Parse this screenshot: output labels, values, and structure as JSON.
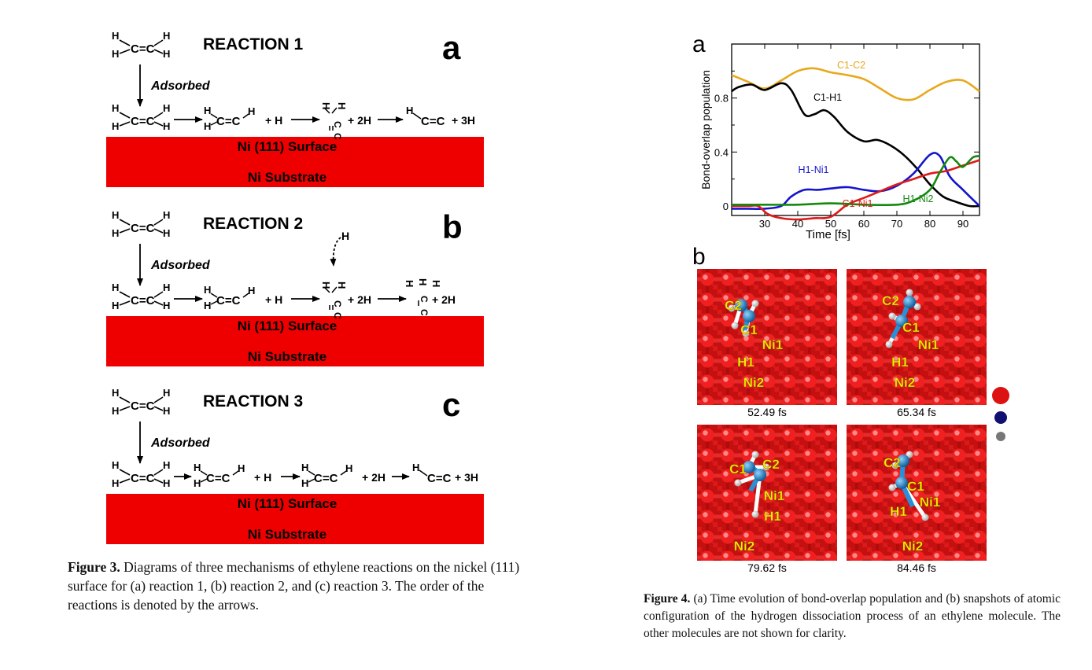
{
  "figure3": {
    "panels": [
      {
        "title": "REACTION 1",
        "letter": "a",
        "adsorbed": "Adsorbed",
        "surface": "Ni (111) Surface",
        "substrate": "Ni Substrate"
      },
      {
        "title": "REACTION 2",
        "letter": "b",
        "adsorbed": "Adsorbed",
        "surface": "Ni (111) Surface",
        "substrate": "Ni Substrate"
      },
      {
        "title": "REACTION 3",
        "letter": "c",
        "adsorbed": "Adsorbed",
        "surface": "Ni (111) Surface",
        "substrate": "Ni Substrate"
      }
    ],
    "plus_h": "+ H",
    "plus_2h": "+ 2H",
    "plus_3h": "+ 3H",
    "h_atom": "H",
    "c_atom": "C",
    "c_eq_c": "C=C",
    "surface_color": "#ee0000",
    "caption_label": "Figure 3.",
    "caption_text": " Diagrams of three mechanisms of ethylene reactions on the nickel (111) surface for (a) reaction 1, (b) reaction 2, and (c) reaction 3. The order of the reactions is denoted by the arrows."
  },
  "figure4": {
    "panel_a_letter": "a",
    "panel_b_letter": "b",
    "snapshot_labels": [
      "C2",
      "C1",
      "Ni1",
      "H1",
      "Ni2"
    ],
    "snapshots": [
      {
        "time": "52.49 fs"
      },
      {
        "time": "65.34 fs"
      },
      {
        "time": "79.62 fs"
      },
      {
        "time": "84.46 fs"
      }
    ],
    "legend_dot_colors": [
      "#dd1111",
      "#101070",
      "#777777"
    ],
    "caption_label": "Figure 4.",
    "caption_text": " (a) Time evolution of bond-overlap population and (b) snapshots of atomic configuration of the hydrogen dissociation process of an ethylene molecule. The other molecules are not shown for clarity."
  },
  "chart_data": {
    "type": "line",
    "xlabel": "Time   [fs]",
    "ylabel": "Bond-overlap population",
    "xlim": [
      20,
      95
    ],
    "ylim": [
      -0.07,
      1.2
    ],
    "xticks": [
      30,
      40,
      50,
      60,
      70,
      80,
      90
    ],
    "yticks": [
      0,
      0.4,
      0.8
    ],
    "ytick_labels": [
      "0",
      "0.4",
      "0.8"
    ],
    "grid": false,
    "series": [
      {
        "name": "C1-C2",
        "color": "#e8a81c",
        "x": [
          20,
          25,
          30,
          35,
          40,
          45,
          50,
          55,
          60,
          65,
          70,
          75,
          80,
          85,
          90,
          95
        ],
        "y": [
          0.97,
          0.92,
          0.87,
          0.93,
          1.0,
          1.02,
          0.99,
          0.97,
          0.94,
          0.87,
          0.8,
          0.79,
          0.86,
          0.92,
          0.93,
          0.85
        ]
      },
      {
        "name": "C1-H1",
        "color": "#000000",
        "x": [
          20,
          22,
          26,
          30,
          35,
          38,
          42,
          45,
          48,
          51,
          55,
          60,
          64,
          68,
          72,
          76,
          80,
          84,
          88,
          92,
          95
        ],
        "y": [
          0.85,
          0.88,
          0.9,
          0.86,
          0.91,
          0.86,
          0.68,
          0.68,
          0.71,
          0.66,
          0.55,
          0.48,
          0.49,
          0.45,
          0.38,
          0.28,
          0.16,
          0.07,
          0.03,
          0.0,
          0.0
        ]
      },
      {
        "name": "H1-Ni1",
        "color": "#1414cc",
        "x": [
          20,
          25,
          30,
          35,
          38,
          42,
          46,
          50,
          55,
          60,
          65,
          70,
          75,
          80,
          83,
          86,
          90,
          95
        ],
        "y": [
          -0.02,
          -0.02,
          -0.02,
          0.0,
          0.07,
          0.12,
          0.12,
          0.13,
          0.14,
          0.12,
          0.11,
          0.15,
          0.24,
          0.38,
          0.37,
          0.22,
          0.12,
          0.0
        ]
      },
      {
        "name": "C1-Ni1",
        "color": "#dd1a1a",
        "x": [
          20,
          25,
          28,
          31,
          35,
          40,
          45,
          50,
          55,
          60,
          65,
          70,
          75,
          80,
          85,
          90,
          95
        ],
        "y": [
          0.0,
          0.0,
          0.0,
          -0.06,
          -0.09,
          -0.1,
          -0.09,
          -0.08,
          0.01,
          0.06,
          0.11,
          0.16,
          0.2,
          0.24,
          0.26,
          0.3,
          0.34
        ]
      },
      {
        "name": "H1-Ni2",
        "color": "#15880f",
        "x": [
          20,
          30,
          40,
          50,
          60,
          70,
          75,
          80,
          83,
          86,
          88,
          90,
          93,
          95
        ],
        "y": [
          0.01,
          0.01,
          0.01,
          0.02,
          0.01,
          0.01,
          0.04,
          0.12,
          0.25,
          0.36,
          0.33,
          0.29,
          0.36,
          0.37
        ]
      }
    ],
    "annotations": [
      {
        "text": "C1-C2",
        "series": "C1-C2"
      },
      {
        "text": "C1-H1",
        "series": "C1-H1"
      },
      {
        "text": "H1-Ni1",
        "series": "H1-Ni1"
      },
      {
        "text": "C1-Ni1",
        "series": "C1-Ni1"
      },
      {
        "text": "H1-Ni2",
        "series": "H1-Ni2"
      }
    ]
  }
}
